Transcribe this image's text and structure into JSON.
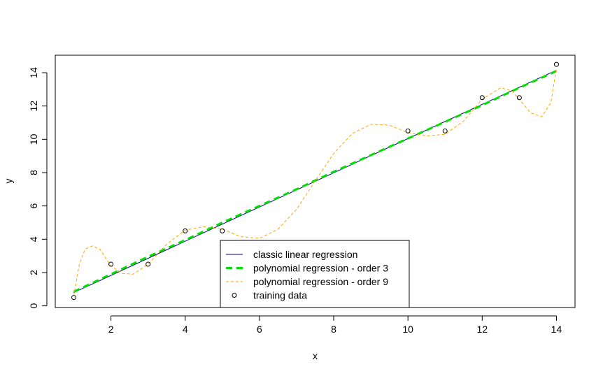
{
  "chart_data": {
    "type": "scatter",
    "title": "",
    "xlabel": "x",
    "ylabel": "y",
    "xlim": [
      0.5,
      14.5
    ],
    "ylim": [
      -0.1,
      15.05
    ],
    "x_ticks": [
      2,
      4,
      6,
      8,
      10,
      12,
      14
    ],
    "y_ticks": [
      0,
      2,
      4,
      6,
      8,
      10,
      12,
      14
    ],
    "grid": false,
    "legend_position": "bottom-center",
    "series": [
      {
        "name": "classic linear regression",
        "kind": "line",
        "style": "solid",
        "color": "#00008b",
        "x": [
          1,
          14
        ],
        "y": [
          0.8,
          14.15
        ]
      },
      {
        "name": "polynomial regression - order 3",
        "kind": "line",
        "style": "dashed",
        "color": "#00e000",
        "x": [
          1,
          2,
          3,
          4,
          5,
          6,
          7,
          8,
          9,
          10,
          11,
          12,
          13,
          14
        ],
        "y": [
          0.85,
          1.9,
          2.95,
          3.95,
          5.0,
          6.0,
          7.0,
          8.05,
          9.05,
          10.05,
          11.05,
          12.05,
          13.1,
          14.1
        ]
      },
      {
        "name": "polynomial regression - order 9",
        "kind": "line",
        "style": "dashed",
        "color": "#ffa500",
        "x": [
          1,
          1.15,
          1.3,
          1.5,
          1.7,
          2,
          2.3,
          2.6,
          3,
          3.5,
          4,
          4.5,
          5,
          5.5,
          6,
          6.5,
          7,
          7.5,
          8,
          8.5,
          9,
          9.5,
          10,
          10.5,
          11,
          11.5,
          12,
          12.5,
          12.8,
          13,
          13.3,
          13.6,
          13.85,
          14
        ],
        "y": [
          0.6,
          2.5,
          3.4,
          3.6,
          3.4,
          2.4,
          1.95,
          1.9,
          2.5,
          3.7,
          4.55,
          4.75,
          4.6,
          4.15,
          4.05,
          4.6,
          5.8,
          7.5,
          9.15,
          10.35,
          10.9,
          10.85,
          10.4,
          10.2,
          10.3,
          11.1,
          12.4,
          13.1,
          12.9,
          12.4,
          11.6,
          11.35,
          12.2,
          14.3
        ]
      },
      {
        "name": "training data",
        "kind": "points",
        "color": "#000000",
        "x": [
          1,
          2,
          3,
          4,
          5,
          10,
          11,
          12,
          13,
          14
        ],
        "y": [
          0.5,
          2.5,
          2.5,
          4.5,
          4.5,
          10.5,
          10.5,
          12.5,
          12.5,
          14.5
        ]
      }
    ]
  }
}
